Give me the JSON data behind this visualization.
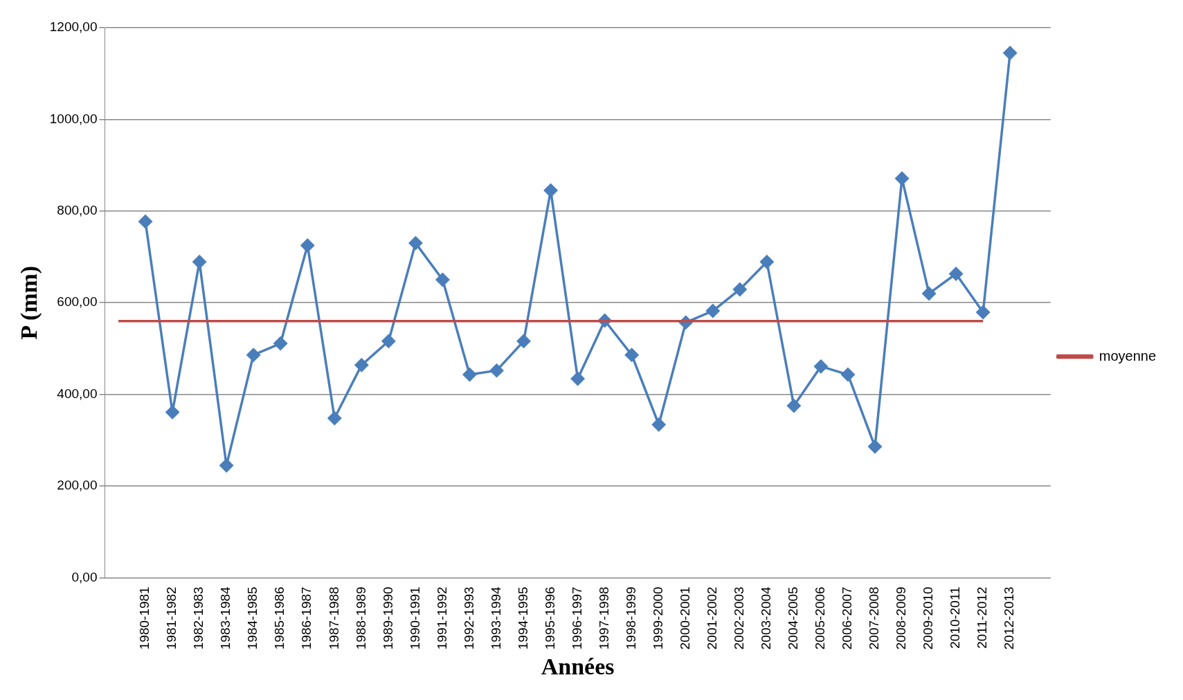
{
  "chart_data": {
    "type": "line",
    "xlabel": "Années",
    "ylabel": "P (mm)",
    "categories": [
      null,
      "1980-1981",
      "1981-1982",
      "1982-1983",
      "1983-1984",
      "1984-1985",
      "1985-1986",
      "1986-1987",
      "1987-1988",
      "1988-1989",
      "1989-1990",
      "1990-1991",
      "1991-1992",
      "1992-1993",
      "1993-1994",
      "1994-1995",
      "1995-1996",
      "1996-1997",
      "1997-1998",
      "1998-1999",
      "1999-2000",
      "2000-2001",
      "2001-2002",
      "2002-2003",
      "2003-2004",
      "2004-2005",
      "2005-2006",
      "2006-2007",
      "2007-2008",
      "2008-2009",
      "2009-2010",
      "2010-2011",
      "2011-2012",
      "2012-2013",
      null
    ],
    "series": [
      {
        "color": "#4a7ebb",
        "marker": "diamond",
        "values": [
          null,
          777,
          361,
          689,
          245,
          486,
          511,
          725,
          348,
          464,
          516,
          730,
          650,
          443,
          452,
          516,
          845,
          434,
          561,
          486,
          334,
          557,
          582,
          629,
          689,
          375,
          461,
          443,
          286,
          871,
          620,
          663,
          579,
          1145,
          null
        ]
      },
      {
        "name": "moyenne",
        "color": "#be4b48",
        "marker": "none",
        "values": [
          560,
          560,
          560,
          560,
          560,
          560,
          560,
          560,
          560,
          560,
          560,
          560,
          560,
          560,
          560,
          560,
          560,
          560,
          560,
          560,
          560,
          560,
          560,
          560,
          560,
          560,
          560,
          560,
          560,
          560,
          560,
          560,
          560,
          null,
          null
        ]
      }
    ],
    "ylim": [
      0,
      1200
    ],
    "yticks": [
      {
        "value": 0,
        "label": "0,00"
      },
      {
        "value": 200,
        "label": "200,00"
      },
      {
        "value": 400,
        "label": "400,00"
      },
      {
        "value": 600,
        "label": "600,00"
      },
      {
        "value": 800,
        "label": "800,00"
      },
      {
        "value": 1000,
        "label": "1000,00"
      },
      {
        "value": 1200,
        "label": "1200,00"
      }
    ],
    "grid": "y",
    "legend": "right",
    "line_style": "solid"
  }
}
